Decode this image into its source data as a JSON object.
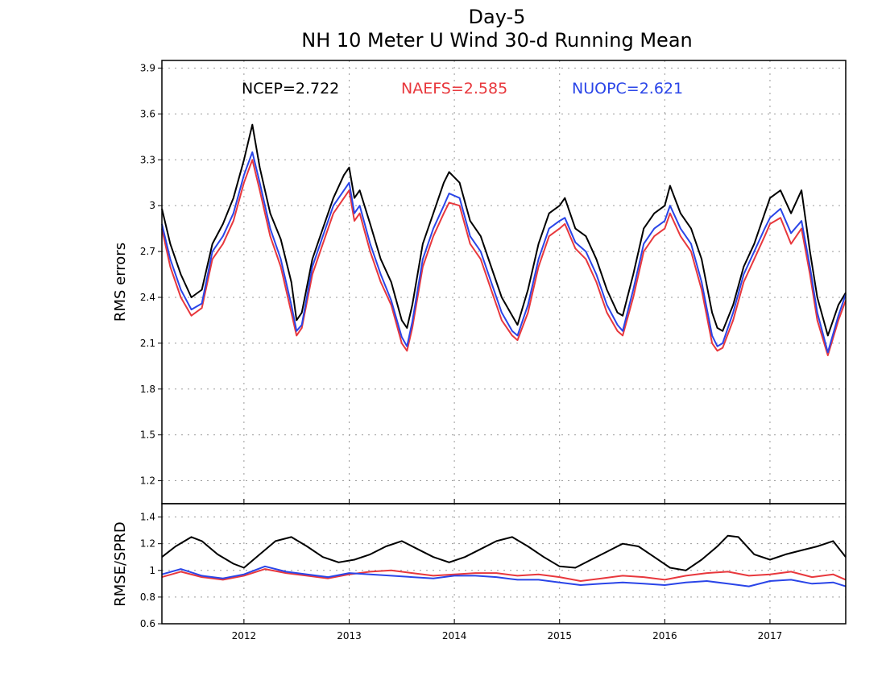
{
  "chart_data": [
    {
      "type": "line",
      "title": "Day-5",
      "subtitle": "NH 10 Meter U Wind 30-d Running Mean",
      "xlabel": "",
      "ylabel": "RMS errors",
      "xlim": [
        2011.22,
        2017.72
      ],
      "ylim": [
        1.05,
        3.95
      ],
      "yticks": [
        "1.2",
        "1.5",
        "1.8",
        "2.1",
        "2.4",
        "2.7",
        "3",
        "3.3",
        "3.6",
        "3.9"
      ],
      "xticks": [
        "2012",
        "2013",
        "2014",
        "2015",
        "2016",
        "2017"
      ],
      "grid": true,
      "legend_position": "top",
      "legend": [
        {
          "label": "NCEP=2.722",
          "color": "#000000"
        },
        {
          "label": "NAEFS=2.585",
          "color": "#e8383d"
        },
        {
          "label": "NUOPC=2.621",
          "color": "#2a45e8"
        }
      ],
      "series": [
        {
          "name": "NCEP",
          "color": "#000000",
          "x": [
            2011.22,
            2011.3,
            2011.4,
            2011.5,
            2011.6,
            2011.7,
            2011.8,
            2011.9,
            2012.0,
            2012.08,
            2012.15,
            2012.25,
            2012.35,
            2012.45,
            2012.5,
            2012.55,
            2012.65,
            2012.75,
            2012.85,
            2012.95,
            2013.0,
            2013.05,
            2013.1,
            2013.2,
            2013.3,
            2013.4,
            2013.5,
            2013.55,
            2013.6,
            2013.7,
            2013.8,
            2013.9,
            2013.95,
            2014.05,
            2014.15,
            2014.25,
            2014.35,
            2014.45,
            2014.55,
            2014.6,
            2014.7,
            2014.8,
            2014.9,
            2015.0,
            2015.05,
            2015.15,
            2015.25,
            2015.35,
            2015.45,
            2015.55,
            2015.6,
            2015.7,
            2015.8,
            2015.9,
            2016.0,
            2016.05,
            2016.15,
            2016.25,
            2016.35,
            2016.45,
            2016.5,
            2016.55,
            2016.65,
            2016.75,
            2016.85,
            2016.95,
            2017.0,
            2017.1,
            2017.2,
            2017.3,
            2017.38,
            2017.45,
            2017.55,
            2017.65,
            2017.72
          ],
          "y": [
            2.98,
            2.75,
            2.55,
            2.4,
            2.45,
            2.75,
            2.88,
            3.05,
            3.3,
            3.53,
            3.25,
            2.95,
            2.78,
            2.5,
            2.25,
            2.3,
            2.65,
            2.85,
            3.05,
            3.2,
            3.25,
            3.05,
            3.1,
            2.88,
            2.65,
            2.5,
            2.25,
            2.2,
            2.35,
            2.75,
            2.95,
            3.15,
            3.22,
            3.15,
            2.9,
            2.8,
            2.6,
            2.4,
            2.28,
            2.22,
            2.45,
            2.75,
            2.95,
            3.0,
            3.05,
            2.85,
            2.8,
            2.65,
            2.45,
            2.3,
            2.28,
            2.55,
            2.85,
            2.95,
            3.0,
            3.13,
            2.95,
            2.85,
            2.65,
            2.3,
            2.2,
            2.18,
            2.35,
            2.6,
            2.75,
            2.95,
            3.05,
            3.1,
            2.95,
            3.1,
            2.7,
            2.4,
            2.15,
            2.35,
            2.43
          ]
        },
        {
          "name": "NAEFS",
          "color": "#e8383d",
          "x": [
            2011.22,
            2011.3,
            2011.4,
            2011.5,
            2011.6,
            2011.7,
            2011.8,
            2011.9,
            2012.0,
            2012.08,
            2012.15,
            2012.25,
            2012.35,
            2012.45,
            2012.5,
            2012.55,
            2012.65,
            2012.75,
            2012.85,
            2012.95,
            2013.0,
            2013.05,
            2013.1,
            2013.2,
            2013.3,
            2013.4,
            2013.5,
            2013.55,
            2013.6,
            2013.7,
            2013.8,
            2013.9,
            2013.95,
            2014.05,
            2014.15,
            2014.25,
            2014.35,
            2014.45,
            2014.55,
            2014.6,
            2014.7,
            2014.8,
            2014.9,
            2015.0,
            2015.05,
            2015.15,
            2015.25,
            2015.35,
            2015.45,
            2015.55,
            2015.6,
            2015.7,
            2015.8,
            2015.9,
            2016.0,
            2016.05,
            2016.15,
            2016.25,
            2016.35,
            2016.45,
            2016.5,
            2016.55,
            2016.65,
            2016.75,
            2016.85,
            2016.95,
            2017.0,
            2017.1,
            2017.2,
            2017.3,
            2017.38,
            2017.45,
            2017.55,
            2017.65,
            2017.72
          ],
          "y": [
            2.85,
            2.6,
            2.4,
            2.28,
            2.33,
            2.65,
            2.75,
            2.9,
            3.15,
            3.3,
            3.1,
            2.8,
            2.6,
            2.3,
            2.15,
            2.2,
            2.55,
            2.75,
            2.95,
            3.05,
            3.1,
            2.9,
            2.95,
            2.7,
            2.5,
            2.35,
            2.1,
            2.05,
            2.2,
            2.6,
            2.8,
            2.95,
            3.02,
            3.0,
            2.75,
            2.65,
            2.45,
            2.25,
            2.15,
            2.12,
            2.3,
            2.6,
            2.8,
            2.85,
            2.88,
            2.72,
            2.65,
            2.5,
            2.3,
            2.18,
            2.15,
            2.4,
            2.7,
            2.8,
            2.85,
            2.95,
            2.8,
            2.7,
            2.45,
            2.1,
            2.05,
            2.07,
            2.25,
            2.5,
            2.65,
            2.8,
            2.88,
            2.92,
            2.75,
            2.85,
            2.55,
            2.25,
            2.02,
            2.25,
            2.38
          ]
        },
        {
          "name": "NUOPC",
          "color": "#2a45e8",
          "x": [
            2011.22,
            2011.3,
            2011.4,
            2011.5,
            2011.6,
            2011.7,
            2011.8,
            2011.9,
            2012.0,
            2012.08,
            2012.15,
            2012.25,
            2012.35,
            2012.45,
            2012.5,
            2012.55,
            2012.65,
            2012.75,
            2012.85,
            2012.95,
            2013.0,
            2013.05,
            2013.1,
            2013.2,
            2013.3,
            2013.4,
            2013.5,
            2013.55,
            2013.6,
            2013.7,
            2013.8,
            2013.9,
            2013.95,
            2014.05,
            2014.15,
            2014.25,
            2014.35,
            2014.45,
            2014.55,
            2014.6,
            2014.7,
            2014.8,
            2014.9,
            2015.0,
            2015.05,
            2015.15,
            2015.25,
            2015.35,
            2015.45,
            2015.55,
            2015.6,
            2015.7,
            2015.8,
            2015.9,
            2016.0,
            2016.05,
            2016.15,
            2016.25,
            2016.35,
            2016.45,
            2016.5,
            2016.55,
            2016.65,
            2016.75,
            2016.85,
            2016.95,
            2017.0,
            2017.1,
            2017.2,
            2017.3,
            2017.38,
            2017.45,
            2017.55,
            2017.65,
            2017.72
          ],
          "y": [
            2.88,
            2.65,
            2.45,
            2.32,
            2.36,
            2.7,
            2.8,
            2.95,
            3.2,
            3.35,
            3.15,
            2.85,
            2.65,
            2.35,
            2.18,
            2.22,
            2.6,
            2.8,
            3.0,
            3.1,
            3.15,
            2.95,
            3.0,
            2.75,
            2.55,
            2.38,
            2.14,
            2.08,
            2.24,
            2.65,
            2.85,
            3.0,
            3.08,
            3.05,
            2.8,
            2.7,
            2.5,
            2.3,
            2.18,
            2.15,
            2.35,
            2.65,
            2.85,
            2.9,
            2.92,
            2.76,
            2.7,
            2.55,
            2.35,
            2.22,
            2.18,
            2.45,
            2.75,
            2.85,
            2.9,
            3.0,
            2.85,
            2.75,
            2.5,
            2.15,
            2.08,
            2.1,
            2.3,
            2.55,
            2.7,
            2.85,
            2.92,
            2.98,
            2.82,
            2.9,
            2.6,
            2.3,
            2.04,
            2.28,
            2.42
          ]
        }
      ]
    },
    {
      "type": "line",
      "xlabel": "",
      "ylabel": "RMSE/SPRD",
      "xlim": [
        2011.22,
        2017.72
      ],
      "ylim": [
        0.6,
        1.5
      ],
      "yticks": [
        "0.6",
        "0.8",
        "1",
        "1.2",
        "1.4"
      ],
      "xticks": [
        "2012",
        "2013",
        "2014",
        "2015",
        "2016",
        "2017"
      ],
      "grid": true,
      "series": [
        {
          "name": "NCEP",
          "color": "#000000",
          "x": [
            2011.22,
            2011.35,
            2011.5,
            2011.6,
            2011.75,
            2011.9,
            2012.0,
            2012.15,
            2012.3,
            2012.45,
            2012.6,
            2012.75,
            2012.9,
            2013.05,
            2013.2,
            2013.35,
            2013.5,
            2013.65,
            2013.8,
            2013.95,
            2014.1,
            2014.25,
            2014.4,
            2014.55,
            2014.7,
            2014.85,
            2015.0,
            2015.15,
            2015.3,
            2015.45,
            2015.6,
            2015.75,
            2015.9,
            2016.05,
            2016.2,
            2016.35,
            2016.5,
            2016.6,
            2016.7,
            2016.85,
            2017.0,
            2017.15,
            2017.3,
            2017.45,
            2017.6,
            2017.72
          ],
          "y": [
            1.1,
            1.18,
            1.25,
            1.22,
            1.12,
            1.05,
            1.02,
            1.12,
            1.22,
            1.25,
            1.18,
            1.1,
            1.06,
            1.08,
            1.12,
            1.18,
            1.22,
            1.16,
            1.1,
            1.06,
            1.1,
            1.16,
            1.22,
            1.25,
            1.18,
            1.1,
            1.03,
            1.02,
            1.08,
            1.14,
            1.2,
            1.18,
            1.1,
            1.02,
            1.0,
            1.08,
            1.18,
            1.26,
            1.25,
            1.12,
            1.08,
            1.12,
            1.15,
            1.18,
            1.22,
            1.1
          ]
        },
        {
          "name": "NAEFS",
          "color": "#e8383d",
          "x": [
            2011.22,
            2011.4,
            2011.6,
            2011.8,
            2012.0,
            2012.2,
            2012.4,
            2012.6,
            2012.8,
            2013.0,
            2013.2,
            2013.4,
            2013.6,
            2013.8,
            2014.0,
            2014.2,
            2014.4,
            2014.6,
            2014.8,
            2015.0,
            2015.2,
            2015.4,
            2015.6,
            2015.8,
            2016.0,
            2016.2,
            2016.4,
            2016.6,
            2016.8,
            2017.0,
            2017.2,
            2017.4,
            2017.6,
            2017.72
          ],
          "y": [
            0.95,
            0.99,
            0.95,
            0.93,
            0.96,
            1.01,
            0.98,
            0.96,
            0.94,
            0.97,
            0.99,
            1.0,
            0.98,
            0.96,
            0.97,
            0.98,
            0.98,
            0.96,
            0.97,
            0.95,
            0.92,
            0.94,
            0.96,
            0.95,
            0.93,
            0.96,
            0.98,
            0.99,
            0.96,
            0.97,
            0.99,
            0.95,
            0.97,
            0.93
          ]
        },
        {
          "name": "NUOPC",
          "color": "#2a45e8",
          "x": [
            2011.22,
            2011.4,
            2011.6,
            2011.8,
            2012.0,
            2012.2,
            2012.4,
            2012.6,
            2012.8,
            2013.0,
            2013.2,
            2013.4,
            2013.6,
            2013.8,
            2014.0,
            2014.2,
            2014.4,
            2014.6,
            2014.8,
            2015.0,
            2015.2,
            2015.4,
            2015.6,
            2015.8,
            2016.0,
            2016.2,
            2016.4,
            2016.6,
            2016.8,
            2017.0,
            2017.2,
            2017.4,
            2017.6,
            2017.72
          ],
          "y": [
            0.97,
            1.01,
            0.96,
            0.94,
            0.97,
            1.03,
            0.99,
            0.97,
            0.95,
            0.98,
            0.97,
            0.96,
            0.95,
            0.94,
            0.96,
            0.96,
            0.95,
            0.93,
            0.93,
            0.91,
            0.89,
            0.9,
            0.91,
            0.9,
            0.89,
            0.91,
            0.92,
            0.9,
            0.88,
            0.92,
            0.93,
            0.9,
            0.91,
            0.88
          ]
        }
      ]
    }
  ]
}
